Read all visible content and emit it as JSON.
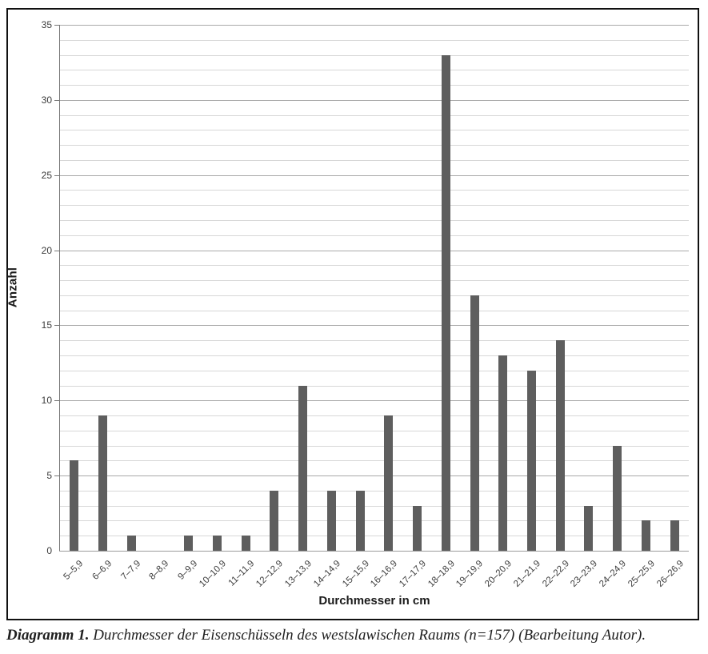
{
  "chart_data": {
    "type": "bar",
    "title": "",
    "categories": [
      "5–5,9",
      "6–6,9",
      "7–7,9",
      "8–8,9",
      "9–9,9",
      "10–10,9",
      "11–11,9",
      "12–12,9",
      "13–13,9",
      "14–14,9",
      "15–15,9",
      "16–16,9",
      "17–17,9",
      "18–18,9",
      "19–19,9",
      "20–20,9",
      "21–21,9",
      "22–22,9",
      "23–23,9",
      "24–24,9",
      "25–25,9",
      "26–26,9"
    ],
    "values": [
      6,
      9,
      1,
      0,
      1,
      1,
      1,
      4,
      11,
      4,
      4,
      9,
      3,
      33,
      17,
      13,
      12,
      14,
      3,
      7,
      2,
      2
    ],
    "xlabel": "Durchmesser in cm",
    "ylabel": "Anzahl",
    "ylim": [
      0,
      35
    ],
    "y_major_step": 5,
    "y_minor_step": 1,
    "y_tick_labels": [
      "0",
      "5",
      "10",
      "15",
      "20",
      "25",
      "30",
      "35"
    ],
    "grid": "on",
    "legend": "none",
    "n_total": 157
  },
  "caption": {
    "label": "Diagramm 1.",
    "text": " Durchmesser der Eisenschüsseln des westslawischen Raums (n=157) (Bearbeitung Autor)."
  },
  "colors": {
    "bar": "#5e5e5e",
    "grid_minor": "#d7d7d7",
    "grid_major": "#a9a9a9",
    "y_axis": "#767676",
    "x_axis": "#9b9b9b",
    "frame": "#111111",
    "tick_label": "#3c3c3c"
  }
}
